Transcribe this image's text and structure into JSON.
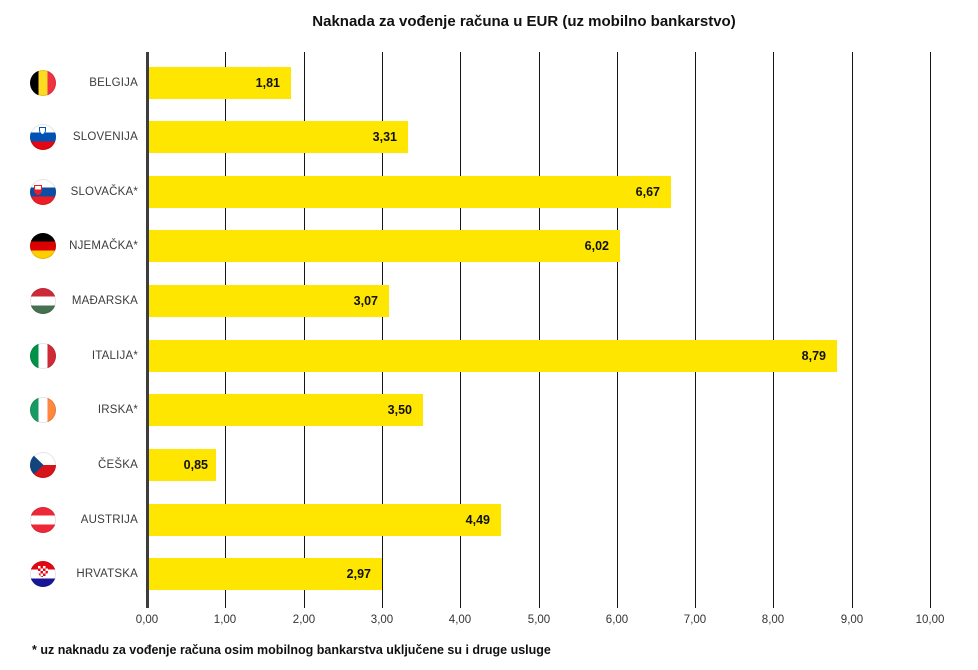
{
  "title": "Naknada za vođenje računa u EUR (uz mobilno bankarstvo)",
  "footnote": "* uz naknadu za vođenje računa osim mobilnog bankarstva uključene su i druge usluge",
  "colors": {
    "bar": "#FFE600",
    "gridline": "#161616",
    "axis": "#3d3d3d",
    "text": "#111111"
  },
  "chart_data": {
    "type": "bar",
    "orientation": "horizontal",
    "title": "Naknada za vođenje računa u EUR (uz mobilno bankarstvo)",
    "categories": [
      "BELGIJA",
      "SLOVENIJA",
      "SLOVAČKA*",
      "NJEMAČKA*",
      "MAĐARSKA",
      "ITALIJA*",
      "IRSKA*",
      "ČEŠKA",
      "AUSTRIJA",
      "HRVATSKA"
    ],
    "values": [
      1.81,
      3.31,
      6.67,
      6.02,
      3.07,
      8.79,
      3.5,
      0.85,
      4.49,
      2.97
    ],
    "value_labels": [
      "1,81",
      "3,31",
      "6,67",
      "6,02",
      "3,07",
      "8,79",
      "3,50",
      "0,85",
      "4,49",
      "2,97"
    ],
    "flag_icons": [
      "belgium-flag-icon",
      "slovenia-flag-icon",
      "slovakia-flag-icon",
      "germany-flag-icon",
      "hungary-flag-icon",
      "italy-flag-icon",
      "ireland-flag-icon",
      "czechia-flag-icon",
      "austria-flag-icon",
      "croatia-flag-icon"
    ],
    "xlabel": "",
    "ylabel": "",
    "xlim": [
      0,
      10
    ],
    "xtick_labels": [
      "0,00",
      "1,00",
      "2,00",
      "3,00",
      "4,00",
      "5,00",
      "6,00",
      "7,00",
      "8,00",
      "9,00",
      "10,00"
    ],
    "grid": true,
    "legend": false
  }
}
